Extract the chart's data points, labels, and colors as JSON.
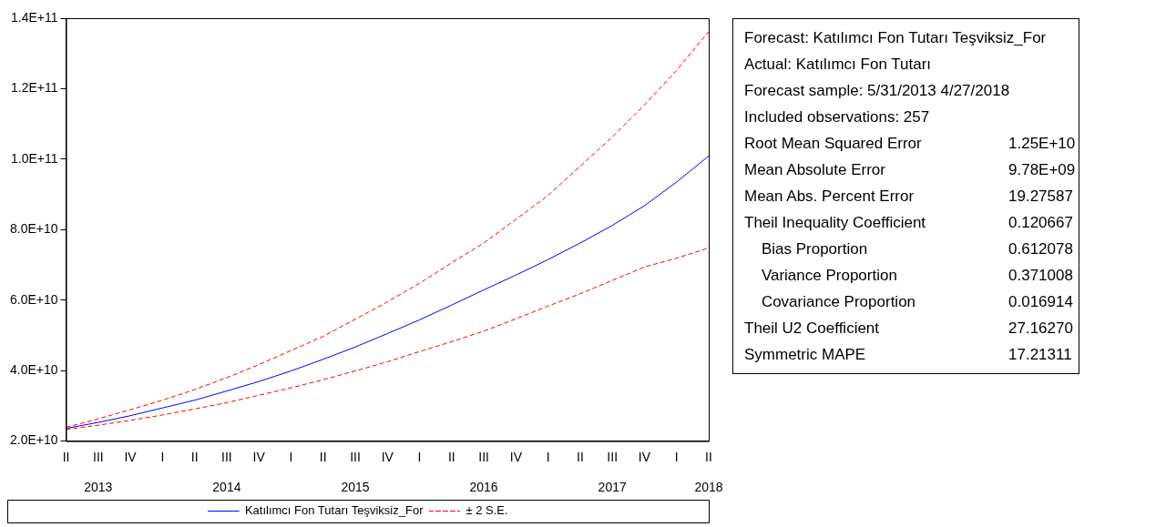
{
  "chart_data": {
    "type": "line",
    "categories": [
      "II",
      "III\n2013",
      "IV",
      "I",
      "II",
      "III\n2014",
      "IV",
      "I",
      "II",
      "III\n2015",
      "IV",
      "I",
      "II",
      "III\n2016",
      "IV",
      "I",
      "II",
      "III\n2017",
      "IV",
      "I",
      "II\n2018"
    ],
    "series": [
      {
        "name": "Katılımcı Fon Tutarı Teşviksiz_For",
        "color": "#0000ff",
        "line_style": "solid",
        "values": [
          23600000000,
          25300000000,
          27200000000,
          29400000000,
          31600000000,
          34200000000,
          36900000000,
          39900000000,
          43200000000,
          46700000000,
          50500000000,
          54400000000,
          58600000000,
          62900000000,
          67100000000,
          71500000000,
          76200000000,
          81200000000,
          86800000000,
          93500000000,
          100900000000
        ]
      },
      {
        "name": "± 2 S.E.",
        "color": "#ff0000",
        "line_style": "dashed",
        "values": [
          23900000000,
          26300000000,
          28900000000,
          31600000000,
          34600000000,
          38000000000,
          41700000000,
          45700000000,
          49700000000,
          54600000000,
          59500000000,
          64800000000,
          70600000000,
          76200000000,
          82900000000,
          89700000000,
          98000000000,
          106300000000,
          115400000000,
          125200000000,
          136200000000
        ]
      },
      {
        "color": "#ff0000",
        "line_style": "dashed",
        "values": [
          23300000000,
          24500000000,
          25900000000,
          27400000000,
          29100000000,
          30900000000,
          33000000000,
          35100000000,
          37400000000,
          39900000000,
          42500000000,
          45400000000,
          48200000000,
          51200000000,
          54700000000,
          58300000000,
          61800000000,
          65600000000,
          69400000000,
          71900000000,
          74800000000
        ]
      }
    ],
    "ylim": [
      20000000000,
      140000000000
    ],
    "yticks": [
      {
        "value": 20000000000,
        "label": "2.0E+10"
      },
      {
        "value": 40000000000,
        "label": "4.0E+10"
      },
      {
        "value": 60000000000,
        "label": "6.0E+10"
      },
      {
        "value": 80000000000,
        "label": "8.0E+10"
      },
      {
        "value": 100000000000,
        "label": "1.0E+11"
      },
      {
        "value": 120000000000,
        "label": "1.2E+11"
      },
      {
        "value": 140000000000,
        "label": "1.4E+11"
      }
    ],
    "grid": false,
    "legend": "bottom",
    "marker": "none",
    "annotations": [
      "Forecast: Katılımcı Fon Tutarı Teşviksiz_For",
      "Actual: Katılımcı Fon Tutarı",
      "Forecast sample: 5/31/2013 4/27/2018",
      "Included observations: 257",
      "Root Mean Squared Error\t1.25E+10",
      "Mean Absolute Error\t9.78E+09",
      "Mean Abs. Percent Error\t19.27587",
      "Theil Inequality Coefficient\t0.120667",
      "    Bias Proportion\t0.612078",
      "    Variance Proportion\t0.371008",
      "    Covariance Proportion\t0.016914",
      "Theil U2 Coefficient\t27.16270",
      "Symmetric MAPE\t17.21311"
    ]
  }
}
